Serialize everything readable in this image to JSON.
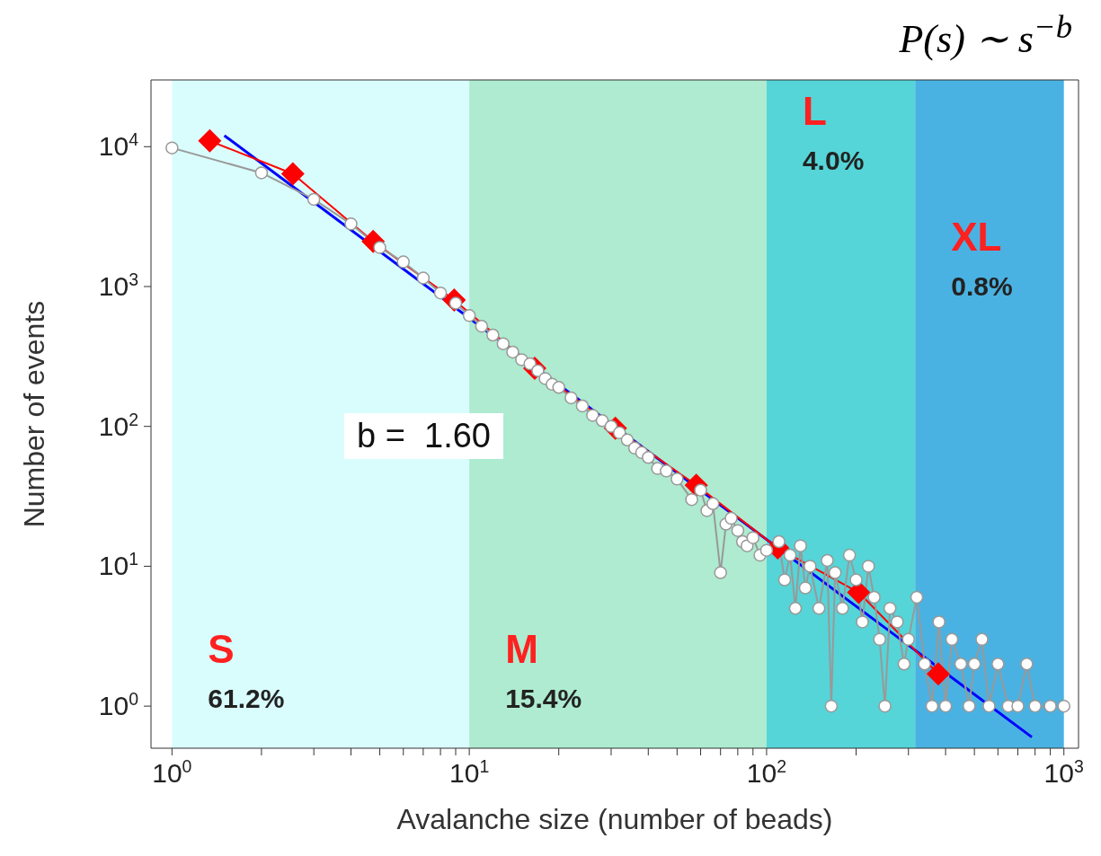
{
  "chart_data": {
    "type": "line",
    "title": "P(s) ∼ s$^{−b}$",
    "xlabel": "Avalanche size (number of beads)",
    "ylabel": "Number of events",
    "log": "xy",
    "xlim": [
      0.85,
      1120
    ],
    "ylim": [
      0.5,
      30000
    ],
    "xticks": [
      {
        "value": 1,
        "label": "10$^{0}$"
      },
      {
        "value": 2,
        "label": null
      },
      {
        "value": 3,
        "label": null
      },
      {
        "value": 4,
        "label": null
      },
      {
        "value": 5,
        "label": null
      },
      {
        "value": 6,
        "label": null
      },
      {
        "value": 7,
        "label": null
      },
      {
        "value": 8,
        "label": null
      },
      {
        "value": 9,
        "label": null
      },
      {
        "value": 10,
        "label": "10$^{1}$"
      },
      {
        "value": 20,
        "label": null
      },
      {
        "value": 30,
        "label": null
      },
      {
        "value": 40,
        "label": null
      },
      {
        "value": 50,
        "label": null
      },
      {
        "value": 60,
        "label": null
      },
      {
        "value": 70,
        "label": null
      },
      {
        "value": 80,
        "label": null
      },
      {
        "value": 90,
        "label": null
      },
      {
        "value": 100,
        "label": "10$^{2}$"
      },
      {
        "value": 200,
        "label": null
      },
      {
        "value": 300,
        "label": null
      },
      {
        "value": 400,
        "label": null
      },
      {
        "value": 500,
        "label": null
      },
      {
        "value": 600,
        "label": null
      },
      {
        "value": 700,
        "label": null
      },
      {
        "value": 800,
        "label": null
      },
      {
        "value": 900,
        "label": null
      },
      {
        "value": 1000,
        "label": "10$^{3}$"
      }
    ],
    "yticks": [
      {
        "value": 1,
        "label": "10$^{0}$"
      },
      {
        "value": 10,
        "label": "10$^{1}$"
      },
      {
        "value": 100,
        "label": "10$^{2}$"
      },
      {
        "value": 1000,
        "label": "10$^{3}$"
      },
      {
        "value": 10000,
        "label": "10$^{4}$"
      }
    ],
    "bands": [
      {
        "axis": "x",
        "from": 1,
        "to": 10,
        "label": "S 61.2%",
        "color": "#d9fdfd"
      },
      {
        "axis": "x",
        "from": 10,
        "to": 100,
        "label": "M 15.4%",
        "color": "#aeebd0"
      },
      {
        "axis": "x",
        "from": 100,
        "to": 316,
        "label": "L 4.0%",
        "color": "#55d5d8"
      },
      {
        "axis": "x",
        "from": 316,
        "to": 1000,
        "label": "XL 0.8%",
        "color": "#4ab2e2"
      }
    ],
    "annotations": [
      "b =  1.60"
    ],
    "series": [
      {
        "color": "#0000ff",
        "marker": "none",
        "x": [
          1.5,
          780
        ],
        "values": [
          12000,
          0.6
        ]
      },
      {
        "color": "#ff0000",
        "marker": "diamond",
        "x": [
          1.34,
          2.55,
          4.75,
          8.9,
          16.6,
          31,
          58,
          109,
          204,
          378
        ],
        "values": [
          11000,
          6400,
          2100,
          800,
          260,
          97,
          38,
          13.5,
          6.5,
          1.7
        ]
      },
      {
        "color": "#999999",
        "marker": "circle",
        "x": [
          1,
          2,
          3,
          4,
          5,
          6,
          7,
          8,
          9,
          10,
          11,
          12,
          13,
          14,
          15,
          16,
          17,
          18,
          19,
          20,
          22,
          24,
          26,
          28,
          30,
          32,
          34,
          36,
          38,
          40,
          43,
          46,
          50,
          56,
          60,
          63,
          66,
          70,
          73,
          76,
          80,
          83,
          86,
          90,
          95,
          100,
          110,
          115,
          120,
          125,
          130,
          135,
          140,
          150,
          160,
          165,
          170,
          180,
          190,
          200,
          210,
          220,
          230,
          240,
          250,
          260,
          275,
          290,
          300,
          320,
          340,
          360,
          380,
          400,
          420,
          450,
          480,
          500,
          530,
          560,
          600,
          650,
          700,
          750,
          800,
          900,
          1000
        ],
        "values": [
          9800,
          6500,
          4200,
          2800,
          1900,
          1500,
          1150,
          900,
          760,
          620,
          520,
          450,
          390,
          340,
          300,
          280,
          250,
          220,
          200,
          190,
          160,
          140,
          120,
          110,
          100,
          90,
          80,
          70,
          65,
          60,
          50,
          48,
          42,
          30,
          35,
          25,
          28,
          9,
          20,
          22,
          18,
          15,
          14,
          16,
          12,
          13,
          15,
          8,
          12,
          5,
          14,
          7,
          10,
          5,
          11,
          1,
          9,
          5,
          12,
          8,
          4,
          10,
          6,
          3,
          1,
          5,
          4,
          2,
          3,
          6,
          2,
          1,
          4,
          1,
          3,
          2,
          1,
          2,
          3,
          1,
          2,
          1,
          1,
          2,
          1,
          1,
          1
        ]
      }
    ]
  }
}
